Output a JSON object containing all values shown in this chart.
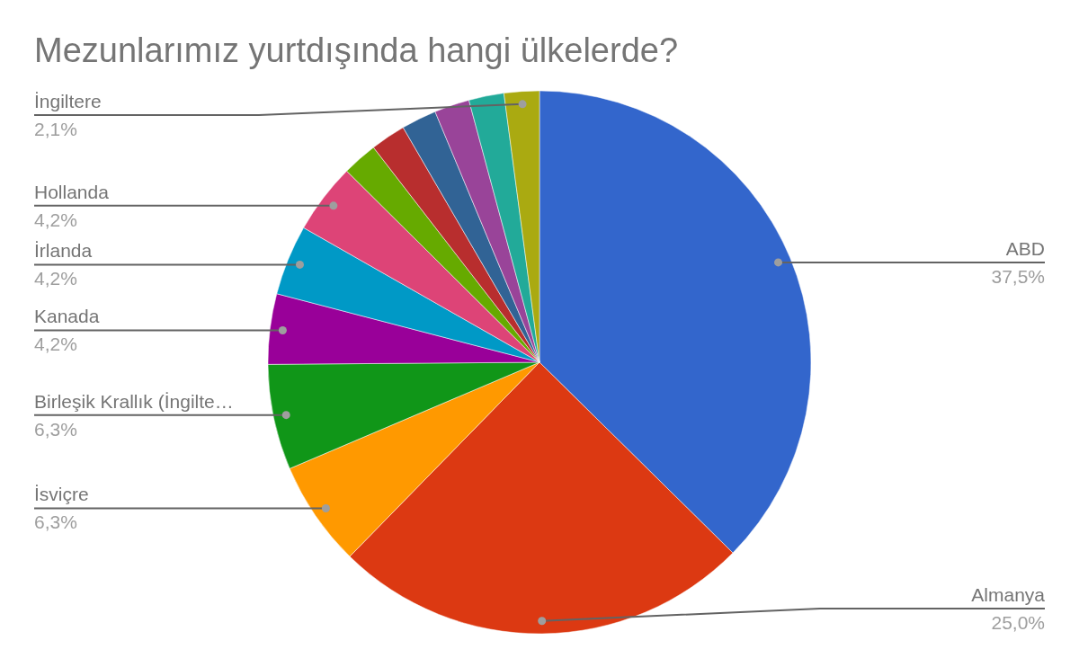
{
  "chart_data": {
    "type": "pie",
    "title": "Mezunlarımız yurtdışında hangi ülkelerde?",
    "categories": [
      "ABD",
      "Almanya",
      "İsviçre",
      "Birleşik Krallık (İngilte…",
      "Kanada",
      "İrlanda",
      "Hollanda",
      null,
      null,
      null,
      null,
      null,
      "İngiltere"
    ],
    "values": [
      37.5,
      25.0,
      6.3,
      6.3,
      4.2,
      4.2,
      4.2,
      2.1,
      2.1,
      2.1,
      2.1,
      2.1,
      2.1
    ],
    "value_labels": [
      "37,5%",
      "25,0%",
      "6,3%",
      "6,3%",
      "4,2%",
      "4,2%",
      "4,2%",
      null,
      null,
      null,
      null,
      null,
      "2,1%"
    ],
    "colors": [
      "#3366cc",
      "#dc3912",
      "#ff9900",
      "#109618",
      "#990099",
      "#0099c6",
      "#dd4477",
      "#66aa00",
      "#b82e2e",
      "#316395",
      "#994499",
      "#22aa99",
      "#aaaa11"
    ]
  }
}
